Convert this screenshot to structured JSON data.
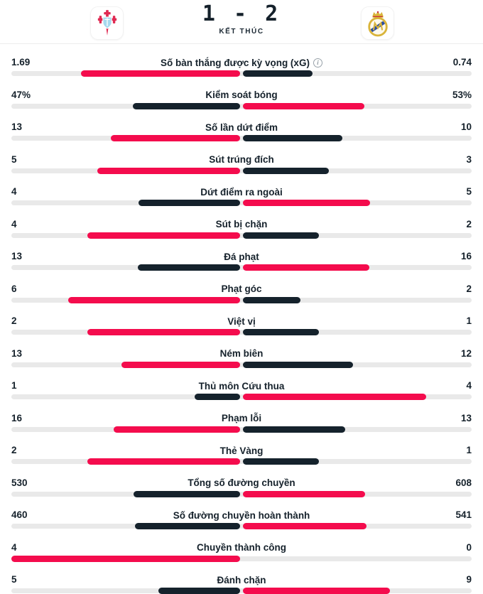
{
  "header": {
    "score": "1 - 2",
    "status": "KẾT THÚC",
    "home_logo": "celta-vigo-crest",
    "away_logo": "real-madrid-crest"
  },
  "colors": {
    "leading_bar": "#f40c4d",
    "trailing_bar": "#15222c",
    "track": "#e9e9e9",
    "text": "#15212b"
  },
  "stats": {
    "rows": [
      {
        "label": "Số bàn thắng được kỳ vọng (xG)",
        "home": "1.69",
        "away": "0.74",
        "home_num": 1.69,
        "away_num": 0.74,
        "info": true
      },
      {
        "label": "Kiểm soát bóng",
        "home": "47%",
        "away": "53%",
        "home_num": 47,
        "away_num": 53,
        "info": false
      },
      {
        "label": "Số lần dứt điểm",
        "home": "13",
        "away": "10",
        "home_num": 13,
        "away_num": 10,
        "info": false
      },
      {
        "label": "Sút trúng đích",
        "home": "5",
        "away": "3",
        "home_num": 5,
        "away_num": 3,
        "info": false
      },
      {
        "label": "Dứt điểm ra ngoài",
        "home": "4",
        "away": "5",
        "home_num": 4,
        "away_num": 5,
        "info": false
      },
      {
        "label": "Sút bị chặn",
        "home": "4",
        "away": "2",
        "home_num": 4,
        "away_num": 2,
        "info": false
      },
      {
        "label": "Đá phạt",
        "home": "13",
        "away": "16",
        "home_num": 13,
        "away_num": 16,
        "info": false
      },
      {
        "label": "Phạt góc",
        "home": "6",
        "away": "2",
        "home_num": 6,
        "away_num": 2,
        "info": false
      },
      {
        "label": "Việt vị",
        "home": "2",
        "away": "1",
        "home_num": 2,
        "away_num": 1,
        "info": false
      },
      {
        "label": "Ném biên",
        "home": "13",
        "away": "12",
        "home_num": 13,
        "away_num": 12,
        "info": false
      },
      {
        "label": "Thủ môn Cứu thua",
        "home": "1",
        "away": "4",
        "home_num": 1,
        "away_num": 4,
        "info": false
      },
      {
        "label": "Phạm lỗi",
        "home": "16",
        "away": "13",
        "home_num": 16,
        "away_num": 13,
        "info": false
      },
      {
        "label": "Thẻ Vàng",
        "home": "2",
        "away": "1",
        "home_num": 2,
        "away_num": 1,
        "info": false
      },
      {
        "label": "Tổng số đường chuyền",
        "home": "530",
        "away": "608",
        "home_num": 530,
        "away_num": 608,
        "info": false
      },
      {
        "label": "Số đường chuyền hoàn thành",
        "home": "460",
        "away": "541",
        "home_num": 460,
        "away_num": 541,
        "info": false
      },
      {
        "label": "Chuyền thành công",
        "home": "4",
        "away": "0",
        "home_num": 4,
        "away_num": 0,
        "info": false
      },
      {
        "label": "Đánh chặn",
        "home": "5",
        "away": "9",
        "home_num": 5,
        "away_num": 9,
        "info": false
      }
    ]
  }
}
